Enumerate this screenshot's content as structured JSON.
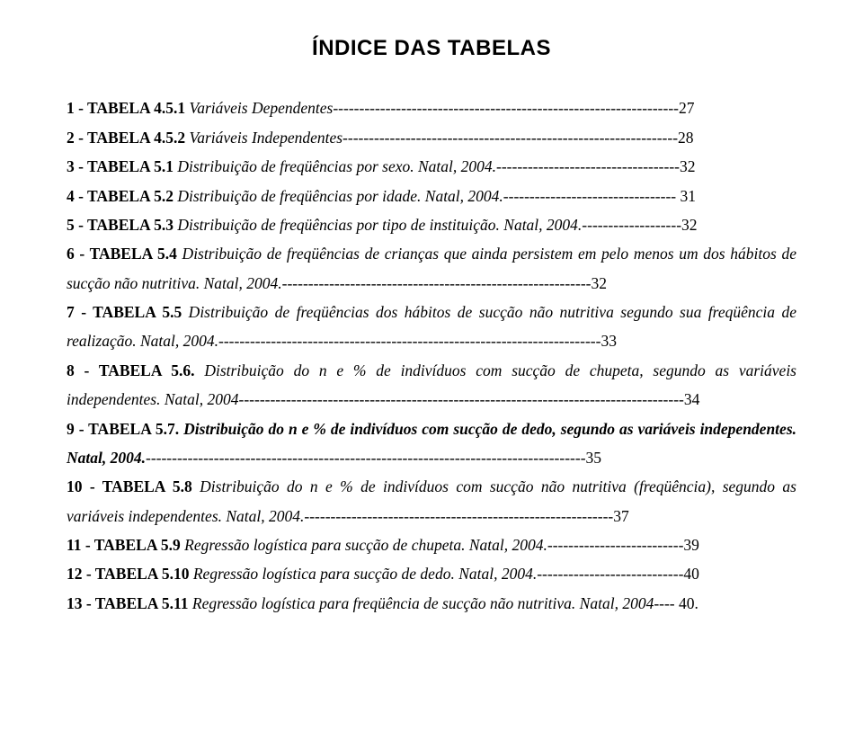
{
  "title": "ÍNDICE DAS TABELAS",
  "entries": [
    {
      "label": "1 - TABELA 4.5.1",
      "desc": " Variáveis Dependentes",
      "fill": "------------------------------------------------------------------",
      "page": "27",
      "bold_desc": false
    },
    {
      "label": "2 - TABELA 4.5.2",
      "desc": " Variáveis Independentes",
      "fill": "----------------------------------------------------------------",
      "page": "28",
      "bold_desc": false
    },
    {
      "label": "3 - TABELA 5.1",
      "desc": " Distribuição de freqüências por sexo. Natal, 2004.",
      "fill": "-----------------------------------",
      "page": "32",
      "bold_desc": false
    },
    {
      "label": "4 - TABELA 5.2",
      "desc": " Distribuição de freqüências por idade. Natal, 2004.",
      "fill": "---------------------------------",
      "page": " 31",
      "bold_desc": false
    },
    {
      "label": "5 - TABELA 5.3",
      "desc": " Distribuição de freqüências por tipo de instituição. Natal, 2004.",
      "fill": "-------------------",
      "page": "32",
      "bold_desc": false
    },
    {
      "label": "6 - TABELA 5.4",
      "desc": " Distribuição de freqüências de crianças que ainda persistem em pelo menos um dos hábitos de sucção não nutritiva. Natal, 2004.",
      "fill": "-----------------------------------------------------------",
      "page": "32",
      "bold_desc": false
    },
    {
      "label": "7 - TABELA 5.5",
      "desc": " Distribuição de freqüências dos hábitos de sucção não nutritiva segundo sua freqüência de realização. Natal, 2004.",
      "fill": "-------------------------------------------------------------------------",
      "page": "33",
      "bold_desc": false
    },
    {
      "label": "8 - TABELA 5.6.",
      "desc": " Distribuição do n e % de indivíduos com sucção de chupeta, segundo as variáveis independentes. Natal, 2004",
      "fill": "-------------------------------------------------------------------------------------",
      "page": "34",
      "bold_desc": false
    },
    {
      "label": "9 - TABELA 5.7.",
      "desc": " Distribuição do n e % de indivíduos com sucção de dedo, segundo as variáveis independentes. Natal, 2004.",
      "fill": "------------------------------------------------------------------------------------",
      "page": "35",
      "bold_desc": true
    },
    {
      "label": "10 - TABELA 5.8",
      "desc": " Distribuição do n e % de indivíduos com sucção não nutritiva (freqüência), segundo as variáveis independentes. Natal, 2004.",
      "fill": "-----------------------------------------------------------",
      "page": "37",
      "bold_desc": false
    },
    {
      "label": "11 - TABELA 5.9",
      "desc": " Regressão logística para sucção de chupeta. Natal, 2004.",
      "fill": "--------------------------",
      "page": "39",
      "bold_desc": false
    },
    {
      "label": "12 - TABELA 5.10",
      "desc": " Regressão logística para sucção de dedo. Natal, 2004.",
      "fill": "----------------------------",
      "page": "40",
      "bold_desc": false
    },
    {
      "label": "13 - TABELA 5.11",
      "desc": " Regressão logística para freqüência de sucção não nutritiva. Natal, 2004",
      "fill": "----",
      "page": " 40.",
      "bold_desc": false
    }
  ]
}
